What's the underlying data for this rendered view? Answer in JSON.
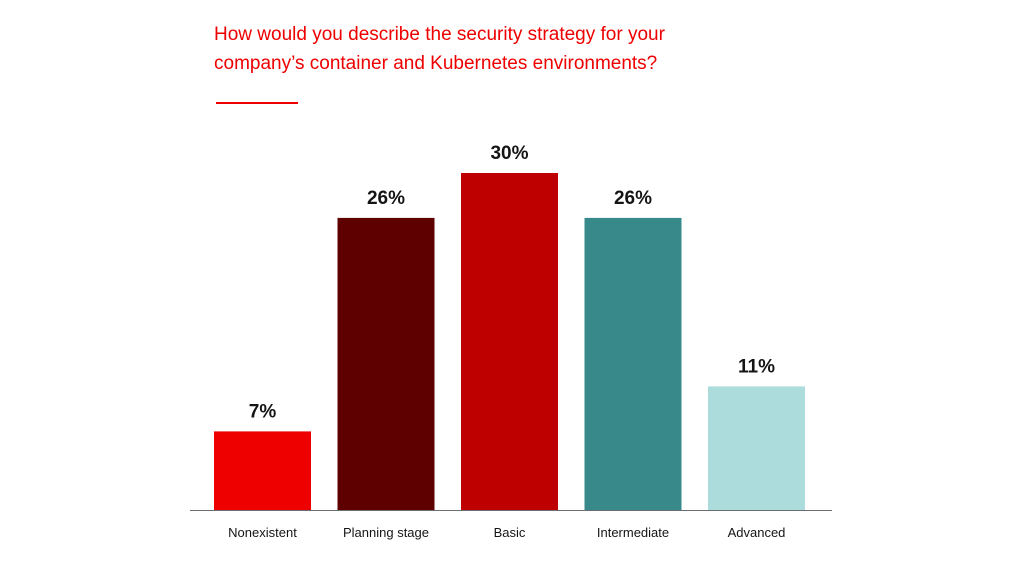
{
  "title": {
    "line1": "How would you describe the security strategy for your",
    "line2": "company’s container and Kubernetes environments?"
  },
  "chart_data": {
    "type": "bar",
    "title": "How would you describe the security strategy for your company’s container and Kubernetes environments?",
    "categories": [
      "Nonexistent",
      "Planning stage",
      "Basic",
      "Intermediate",
      "Advanced"
    ],
    "values": [
      7,
      26,
      30,
      26,
      11
    ],
    "data_labels": [
      "7%",
      "26%",
      "30%",
      "26%",
      "11%"
    ],
    "colors": [
      "#ee0000",
      "#5f0000",
      "#be0000",
      "#37898a",
      "#acdcdc"
    ],
    "xlabel": "",
    "ylabel": "",
    "ylim": [
      0,
      30
    ],
    "grid": false,
    "legend": "none"
  },
  "colors": {
    "accent": "#ee0000",
    "axis": "#6a6e73",
    "label_text": "#151515"
  }
}
